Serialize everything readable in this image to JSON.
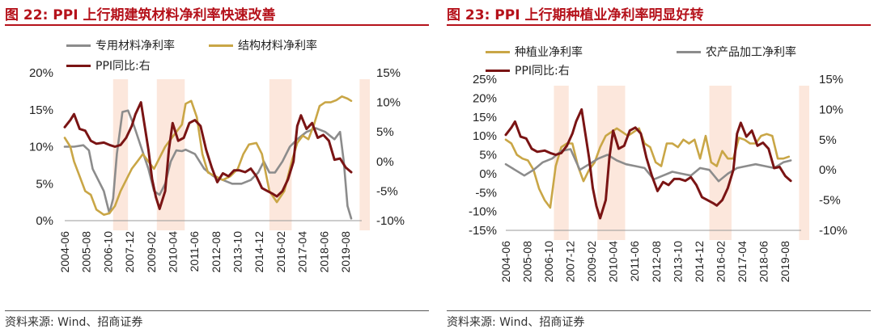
{
  "left": {
    "title": "图 22:  PPI 上行期建筑材料净利率快速改善",
    "source": "资料来源:  Wind、招商证券",
    "legend": [
      {
        "label": "专用材料净利率",
        "color": "#8c8c8c"
      },
      {
        "label": "结构材料净利率",
        "color": "#c9a646"
      },
      {
        "label": "PPI同比:右",
        "color": "#7a1414"
      }
    ],
    "chart_data": {
      "type": "line",
      "x_ticks": [
        "2004-06",
        "2005-08",
        "2006-10",
        "2007-12",
        "2009-02",
        "2010-04",
        "2011-06",
        "2012-08",
        "2013-10",
        "2014-12",
        "2016-02",
        "2017-04",
        "2018-06",
        "2019-08"
      ],
      "y_left_ticks": [
        "20%",
        "15%",
        "10%",
        "5%",
        "0%"
      ],
      "y_right_ticks": [
        "15%",
        "10%",
        "5%",
        "0%",
        "-5%",
        "-10%"
      ],
      "ylim_left": [
        0,
        20
      ],
      "ylim_right": [
        -10,
        15
      ],
      "shaded_ranges": [
        [
          2007.1,
          2007.9
        ],
        [
          2009.45,
          2010.95
        ],
        [
          2015.5,
          2016.7
        ],
        [
          2020.35,
          2020.9
        ]
      ],
      "series": [
        {
          "name": "专用材料净利率",
          "axis": "left",
          "color": "#8c8c8c",
          "x": [
            2004.5,
            2005.0,
            2005.5,
            2005.8,
            2006.0,
            2006.3,
            2006.6,
            2006.9,
            2007.1,
            2007.3,
            2007.6,
            2007.9,
            2008.2,
            2008.6,
            2009.0,
            2009.3,
            2009.6,
            2009.9,
            2010.2,
            2010.5,
            2010.8,
            2011.0,
            2011.5,
            2012.0,
            2012.5,
            2013.0,
            2013.5,
            2014.0,
            2014.5,
            2014.9,
            2015.2,
            2015.5,
            2015.8,
            2016.2,
            2016.6,
            2017.0,
            2017.5,
            2018.0,
            2018.5,
            2019.0,
            2019.3,
            2019.5,
            2019.7,
            2019.9
          ],
          "y": [
            10.0,
            10.0,
            10.2,
            9.5,
            7.0,
            5.5,
            4.0,
            1.0,
            3.0,
            9.0,
            14.7,
            14.9,
            13.0,
            10.0,
            7.0,
            4.0,
            3.5,
            5.0,
            8.0,
            9.5,
            9.4,
            9.6,
            9.0,
            7.0,
            6.0,
            5.5,
            5.0,
            5.0,
            5.5,
            6.5,
            8.0,
            6.5,
            6.5,
            8.0,
            10.0,
            11.0,
            12.0,
            12.5,
            12.0,
            11.0,
            12.0,
            8.0,
            2.0,
            0.3
          ]
        },
        {
          "name": "结构材料净利率",
          "axis": "left",
          "color": "#c9a646",
          "x": [
            2004.5,
            2004.8,
            2005.0,
            2005.3,
            2005.6,
            2005.9,
            2006.2,
            2006.6,
            2006.9,
            2007.2,
            2007.5,
            2007.8,
            2008.1,
            2008.4,
            2008.7,
            2009.0,
            2009.3,
            2009.6,
            2009.9,
            2010.2,
            2010.5,
            2010.8,
            2011.0,
            2011.3,
            2011.6,
            2011.9,
            2012.2,
            2012.6,
            2013.0,
            2013.4,
            2013.8,
            2014.1,
            2014.4,
            2014.8,
            2015.1,
            2015.5,
            2015.9,
            2016.3,
            2016.7,
            2017.0,
            2017.3,
            2017.6,
            2017.9,
            2018.2,
            2018.5,
            2018.8,
            2019.1,
            2019.4,
            2019.7,
            2019.9
          ],
          "y": [
            11.2,
            10.0,
            8.0,
            6.0,
            4.0,
            3.5,
            1.5,
            0.8,
            1.0,
            2.0,
            4.0,
            5.5,
            7.0,
            8.0,
            9.0,
            8.0,
            7.0,
            8.5,
            10.0,
            11.0,
            12.0,
            13.0,
            15.8,
            16.2,
            14.0,
            9.0,
            6.5,
            6.0,
            5.5,
            6.0,
            7.0,
            9.0,
            10.3,
            10.5,
            9.0,
            4.0,
            2.5,
            4.0,
            8.0,
            10.5,
            11.5,
            11.0,
            13.0,
            15.5,
            16.0,
            16.0,
            16.3,
            16.8,
            16.5,
            16.2
          ]
        },
        {
          "name": "PPI同比:右",
          "axis": "right",
          "color": "#7a1414",
          "x": [
            2004.5,
            2004.8,
            2005.0,
            2005.3,
            2005.6,
            2005.9,
            2006.2,
            2006.6,
            2006.9,
            2007.2,
            2007.5,
            2007.8,
            2008.1,
            2008.3,
            2008.6,
            2008.8,
            2009.0,
            2009.2,
            2009.4,
            2009.6,
            2009.9,
            2010.1,
            2010.3,
            2010.6,
            2010.9,
            2011.2,
            2011.5,
            2011.8,
            2012.1,
            2012.4,
            2012.7,
            2013.0,
            2013.3,
            2013.6,
            2013.9,
            2014.2,
            2014.5,
            2014.8,
            2015.1,
            2015.4,
            2015.7,
            2015.9,
            2016.2,
            2016.5,
            2016.8,
            2017.0,
            2017.2,
            2017.5,
            2017.8,
            2018.1,
            2018.4,
            2018.7,
            2019.0,
            2019.3,
            2019.6,
            2019.9
          ],
          "y": [
            5.8,
            7.0,
            8.0,
            5.5,
            5.2,
            3.5,
            3.0,
            3.2,
            2.8,
            2.5,
            2.8,
            4.0,
            6.0,
            8.0,
            10.0,
            6.0,
            2.0,
            -3.0,
            -6.0,
            -8.0,
            -5.0,
            2.0,
            6.5,
            3.5,
            4.0,
            6.5,
            7.0,
            6.0,
            2.0,
            -1.0,
            -3.5,
            -2.0,
            -2.5,
            -1.5,
            -1.5,
            -1.8,
            -1.2,
            -2.5,
            -4.5,
            -5.0,
            -5.5,
            -5.9,
            -5.0,
            -3.0,
            0.0,
            6.0,
            7.8,
            5.5,
            6.5,
            4.0,
            4.5,
            3.5,
            0.3,
            0.5,
            -1.0,
            -1.8
          ]
        }
      ]
    }
  },
  "right": {
    "title": "图 23:  PPI 上行期种植业净利率明显好转",
    "source": "资料来源:  Wind、招商证券",
    "legend": [
      {
        "label": "种植业净利率",
        "color": "#c9a646"
      },
      {
        "label": "农产品加工净利率",
        "color": "#8c8c8c"
      },
      {
        "label": "PPI同比:右",
        "color": "#7a1414"
      }
    ],
    "chart_data": {
      "type": "line",
      "x_ticks": [
        "2004-06",
        "2005-08",
        "2006-10",
        "2007-12",
        "2009-02",
        "2010-04",
        "2011-06",
        "2012-08",
        "2013-10",
        "2014-12",
        "2016-02",
        "2017-04",
        "2018-06",
        "2019-08"
      ],
      "y_left_ticks": [
        "25%",
        "20%",
        "15%",
        "10%",
        "5%",
        "0%",
        "-5%",
        "-10%",
        "-15%"
      ],
      "y_right_ticks": [
        "15%",
        "10%",
        "5%",
        "0%",
        "-5%",
        "-10%"
      ],
      "ylim_left": [
        -15,
        25
      ],
      "ylim_right": [
        -10,
        15
      ],
      "shaded_ranges": [
        [
          2007.1,
          2007.9
        ],
        [
          2009.45,
          2010.95
        ],
        [
          2015.5,
          2016.7
        ],
        [
          2020.35,
          2020.9
        ]
      ],
      "series": [
        {
          "name": "种植业净利率",
          "axis": "left",
          "color": "#c9a646",
          "x": [
            2004.5,
            2004.8,
            2005.1,
            2005.4,
            2005.7,
            2006.0,
            2006.3,
            2006.6,
            2006.9,
            2007.2,
            2007.5,
            2007.8,
            2008.1,
            2008.4,
            2008.7,
            2009.0,
            2009.3,
            2009.6,
            2009.9,
            2010.2,
            2010.5,
            2010.8,
            2011.1,
            2011.4,
            2011.7,
            2012.0,
            2012.3,
            2012.6,
            2012.9,
            2013.2,
            2013.5,
            2013.8,
            2014.1,
            2014.4,
            2014.7,
            2015.0,
            2015.3,
            2015.6,
            2015.9,
            2016.2,
            2016.5,
            2016.8,
            2017.1,
            2017.4,
            2017.7,
            2018.0,
            2018.3,
            2018.6,
            2018.9,
            2019.2,
            2019.5,
            2019.8
          ],
          "y": [
            9.0,
            8.0,
            5.0,
            4.0,
            3.5,
            1.0,
            -4.0,
            -7.0,
            -9.0,
            2.0,
            7.0,
            8.0,
            8.0,
            2.0,
            -2.0,
            1.0,
            3.0,
            7.0,
            10.0,
            11.0,
            12.0,
            11.0,
            10.0,
            11.0,
            12.0,
            8.0,
            7.0,
            3.0,
            2.0,
            8.0,
            8.0,
            7.0,
            9.0,
            8.0,
            9.0,
            4.0,
            10.0,
            3.0,
            2.0,
            6.0,
            4.0,
            4.0,
            9.5,
            9.0,
            8.0,
            8.0,
            10.0,
            10.5,
            10.0,
            4.0,
            4.0,
            4.5
          ]
        },
        {
          "name": "农产品加工净利率",
          "axis": "left",
          "color": "#8c8c8c",
          "x": [
            2004.5,
            2005.0,
            2005.5,
            2006.0,
            2006.5,
            2007.0,
            2007.5,
            2008.0,
            2008.5,
            2009.0,
            2009.5,
            2010.0,
            2010.5,
            2011.0,
            2011.5,
            2012.0,
            2012.5,
            2013.0,
            2013.5,
            2014.0,
            2014.5,
            2015.0,
            2015.5,
            2016.0,
            2016.5,
            2017.0,
            2017.5,
            2018.0,
            2018.5,
            2019.0,
            2019.5,
            2019.9
          ],
          "y": [
            2.5,
            1.0,
            -0.5,
            1.0,
            3.0,
            4.0,
            6.0,
            6.5,
            1.0,
            2.5,
            4.0,
            5.0,
            3.5,
            2.5,
            2.0,
            1.5,
            -1.5,
            -0.5,
            0.5,
            0.0,
            -0.5,
            1.5,
            1.0,
            -2.0,
            0.0,
            1.5,
            2.0,
            2.5,
            2.0,
            1.5,
            3.0,
            3.5
          ]
        },
        {
          "name": "PPI同比:右",
          "axis": "right",
          "color": "#7a1414",
          "x": [
            2004.5,
            2004.8,
            2005.0,
            2005.3,
            2005.6,
            2005.9,
            2006.2,
            2006.6,
            2006.9,
            2007.2,
            2007.5,
            2007.8,
            2008.1,
            2008.3,
            2008.6,
            2008.8,
            2009.0,
            2009.2,
            2009.4,
            2009.6,
            2009.9,
            2010.1,
            2010.3,
            2010.6,
            2010.9,
            2011.2,
            2011.5,
            2011.8,
            2012.1,
            2012.4,
            2012.7,
            2013.0,
            2013.3,
            2013.6,
            2013.9,
            2014.2,
            2014.5,
            2014.8,
            2015.1,
            2015.4,
            2015.7,
            2015.9,
            2016.2,
            2016.5,
            2016.8,
            2017.0,
            2017.2,
            2017.5,
            2017.8,
            2018.1,
            2018.4,
            2018.7,
            2019.0,
            2019.3,
            2019.6,
            2019.9
          ],
          "y": [
            5.8,
            7.0,
            8.0,
            5.5,
            5.2,
            3.5,
            3.0,
            3.2,
            2.8,
            2.5,
            2.8,
            4.0,
            6.0,
            8.0,
            10.0,
            6.0,
            2.0,
            -3.0,
            -6.0,
            -8.0,
            -5.0,
            2.0,
            6.5,
            3.5,
            4.0,
            6.5,
            7.0,
            6.0,
            2.0,
            -1.0,
            -3.5,
            -2.0,
            -2.5,
            -1.5,
            -1.5,
            -1.8,
            -1.2,
            -2.5,
            -4.5,
            -5.0,
            -5.5,
            -5.9,
            -5.0,
            -3.0,
            0.0,
            6.0,
            7.8,
            5.5,
            6.5,
            4.0,
            4.5,
            3.5,
            0.3,
            0.5,
            -1.0,
            -1.8
          ]
        }
      ]
    }
  }
}
